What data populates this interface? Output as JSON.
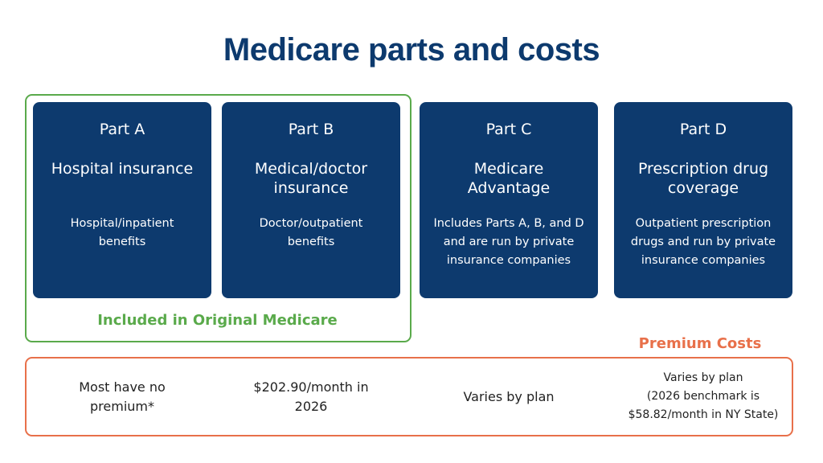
{
  "title": "Medicare parts and costs",
  "parts": [
    {
      "name": "Part A",
      "heading": "Hospital insurance",
      "description": "Hospital/inpatient benefits"
    },
    {
      "name": "Part B",
      "heading": "Medical/doctor insurance",
      "description": "Doctor/outpatient benefits"
    },
    {
      "name": "Part C",
      "heading": "Medicare Advantage",
      "description": "Includes Parts A, B, and D and are run by private insurance companies"
    },
    {
      "name": "Part D",
      "heading": "Prescription drug coverage",
      "description": "Outpatient prescription drugs and run by private insurance companies"
    }
  ],
  "group_label": "Included in Original Medicare",
  "premium_label": "Premium Costs",
  "costs": [
    {
      "text": "Most have no premium*"
    },
    {
      "text": "$202.90/month in 2026"
    },
    {
      "text": "Varies by plan"
    },
    {
      "text": "Varies by plan",
      "note": "(2026 benchmark is $58.82/month in NY State)"
    }
  ]
}
